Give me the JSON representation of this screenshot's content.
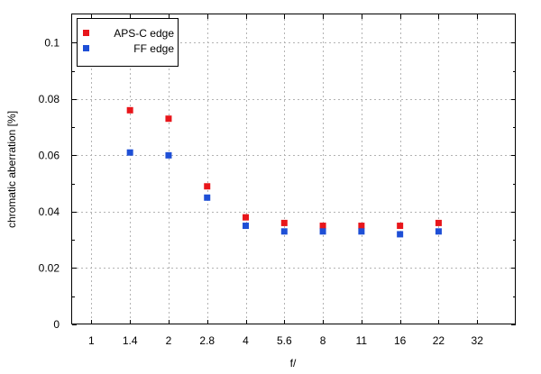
{
  "chart_data": {
    "type": "scatter",
    "title": "",
    "xlabel": "f/",
    "ylabel": "chromatic aberration [%]",
    "categories": [
      "1",
      "1.4",
      "2",
      "2.8",
      "4",
      "5.6",
      "8",
      "11",
      "16",
      "22",
      "32"
    ],
    "ylim": [
      0,
      0.11
    ],
    "yticks": [
      "0",
      "0.02",
      "0.04",
      "0.06",
      "0.08",
      "0.1"
    ],
    "grid": true,
    "legend_position": "top-left",
    "series": [
      {
        "name": "APS-C edge",
        "color": "#e8161b",
        "points": [
          {
            "x": "1.4",
            "y": 0.076
          },
          {
            "x": "2",
            "y": 0.073
          },
          {
            "x": "2.8",
            "y": 0.049
          },
          {
            "x": "4",
            "y": 0.038
          },
          {
            "x": "5.6",
            "y": 0.036
          },
          {
            "x": "8",
            "y": 0.035
          },
          {
            "x": "11",
            "y": 0.035
          },
          {
            "x": "16",
            "y": 0.035
          },
          {
            "x": "22",
            "y": 0.036
          }
        ]
      },
      {
        "name": "FF edge",
        "color": "#1e4fd6",
        "points": [
          {
            "x": "1.4",
            "y": 0.061
          },
          {
            "x": "2",
            "y": 0.06
          },
          {
            "x": "2.8",
            "y": 0.045
          },
          {
            "x": "4",
            "y": 0.035
          },
          {
            "x": "5.6",
            "y": 0.033
          },
          {
            "x": "8",
            "y": 0.033
          },
          {
            "x": "11",
            "y": 0.033
          },
          {
            "x": "16",
            "y": 0.032
          },
          {
            "x": "22",
            "y": 0.033
          }
        ]
      }
    ]
  }
}
